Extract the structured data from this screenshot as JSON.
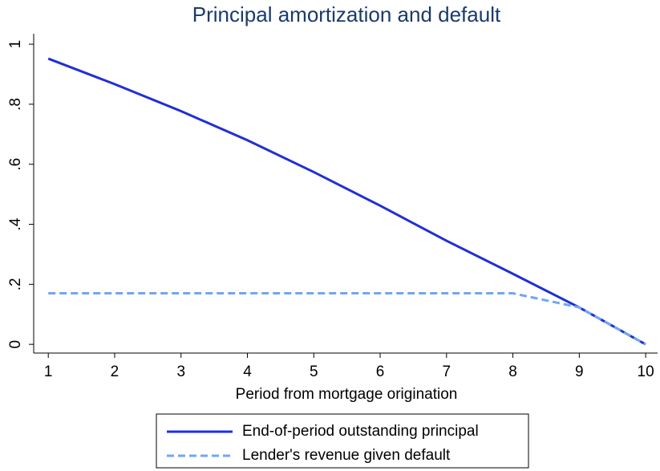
{
  "chart_data": {
    "type": "line",
    "title": "Principal amortization and default",
    "x_label": "Period from mortgage origination",
    "x": [
      1,
      2,
      3,
      4,
      5,
      6,
      7,
      8,
      9,
      10
    ],
    "series": [
      {
        "name": "End-of-period outstanding principal",
        "color": "#1f2fd6",
        "dash": false,
        "values": [
          0.952,
          0.867,
          0.777,
          0.68,
          0.574,
          0.462,
          0.345,
          0.235,
          0.123,
          0
        ]
      },
      {
        "name": "Lender's revenue given default",
        "color": "#6fa8ee",
        "dash": true,
        "values": [
          0.17,
          0.17,
          0.17,
          0.17,
          0.17,
          0.17,
          0.17,
          0.17,
          0.123,
          0
        ]
      }
    ],
    "xlim": [
      0.78,
      10.18
    ],
    "xticks": [
      1,
      2,
      3,
      4,
      5,
      6,
      7,
      8,
      9,
      10
    ],
    "ylim": [
      -0.029,
      1.035
    ],
    "yticks": [
      0,
      {
        "value": 0.2,
        "label": ".2"
      },
      {
        "value": 0.4,
        "label": ".4"
      },
      {
        "value": 0.6,
        "label": ".6"
      },
      {
        "value": 0.8,
        "label": ".8"
      },
      1
    ],
    "grid": false,
    "legend": "bottom"
  }
}
